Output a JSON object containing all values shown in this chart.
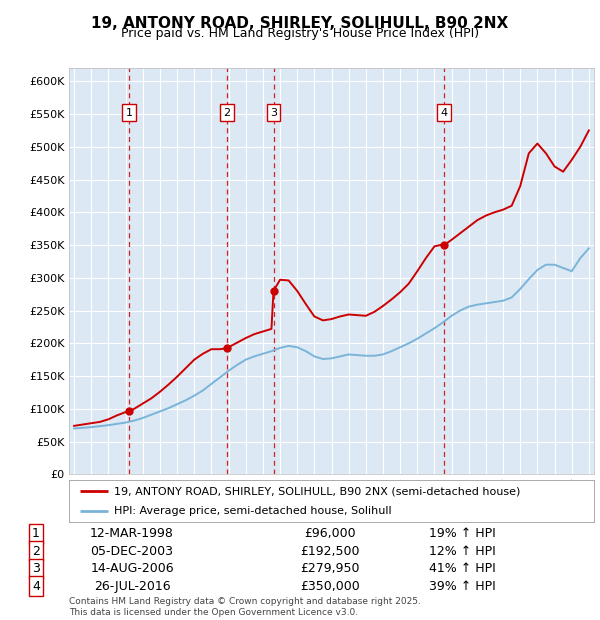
{
  "title": "19, ANTONY ROAD, SHIRLEY, SOLIHULL, B90 2NX",
  "subtitle": "Price paid vs. HM Land Registry's House Price Index (HPI)",
  "plot_bg_color": "#dce9f5",
  "hpi_color": "#7ab4d8",
  "price_color": "#cc0000",
  "ylim": [
    0,
    620000
  ],
  "yticks": [
    0,
    50000,
    100000,
    150000,
    200000,
    250000,
    300000,
    350000,
    400000,
    450000,
    500000,
    550000,
    600000
  ],
  "xlim_start": 1994.7,
  "xlim_end": 2025.3,
  "sale_dates": [
    1998.19,
    2003.92,
    2006.62,
    2016.57
  ],
  "sale_prices": [
    96000,
    192500,
    279950,
    350000
  ],
  "sale_labels": [
    "1",
    "2",
    "3",
    "4"
  ],
  "sale_hpi_pct": [
    "19% ↑ HPI",
    "12% ↑ HPI",
    "41% ↑ HPI",
    "39% ↑ HPI"
  ],
  "sale_date_strs": [
    "12-MAR-1998",
    "05-DEC-2003",
    "14-AUG-2006",
    "26-JUL-2016"
  ],
  "sale_price_strs": [
    "£96,000",
    "£192,500",
    "£279,950",
    "£350,000"
  ],
  "legend_line1": "19, ANTONY ROAD, SHIRLEY, SOLIHULL, B90 2NX (semi-detached house)",
  "legend_line2": "HPI: Average price, semi-detached house, Solihull",
  "footer": "Contains HM Land Registry data © Crown copyright and database right 2025.\nThis data is licensed under the Open Government Licence v3.0.",
  "hpi_x": [
    1995.0,
    1995.5,
    1996.0,
    1996.5,
    1997.0,
    1997.5,
    1998.0,
    1998.5,
    1999.0,
    1999.5,
    2000.0,
    2000.5,
    2001.0,
    2001.5,
    2002.0,
    2002.5,
    2003.0,
    2003.5,
    2004.0,
    2004.5,
    2005.0,
    2005.5,
    2006.0,
    2006.5,
    2007.0,
    2007.5,
    2008.0,
    2008.5,
    2009.0,
    2009.5,
    2010.0,
    2010.5,
    2011.0,
    2011.5,
    2012.0,
    2012.5,
    2013.0,
    2013.5,
    2014.0,
    2014.5,
    2015.0,
    2015.5,
    2016.0,
    2016.5,
    2017.0,
    2017.5,
    2018.0,
    2018.5,
    2019.0,
    2019.5,
    2020.0,
    2020.5,
    2021.0,
    2021.5,
    2022.0,
    2022.5,
    2023.0,
    2023.5,
    2024.0,
    2024.5,
    2025.0
  ],
  "hpi_y": [
    70000,
    71000,
    72000,
    73500,
    75000,
    77000,
    79000,
    82000,
    86000,
    91000,
    96000,
    101000,
    107000,
    113000,
    120000,
    128000,
    138000,
    148000,
    158000,
    167000,
    175000,
    180000,
    184000,
    188000,
    193000,
    196000,
    194000,
    188000,
    180000,
    176000,
    177000,
    180000,
    183000,
    182000,
    181000,
    181000,
    183000,
    188000,
    194000,
    200000,
    207000,
    215000,
    223000,
    232000,
    242000,
    250000,
    256000,
    259000,
    261000,
    263000,
    265000,
    270000,
    283000,
    298000,
    312000,
    320000,
    320000,
    315000,
    310000,
    330000,
    345000
  ],
  "price_x": [
    1995.0,
    1995.5,
    1996.0,
    1996.5,
    1997.0,
    1997.5,
    1998.0,
    1998.19,
    1998.5,
    1999.0,
    1999.5,
    2000.0,
    2000.5,
    2001.0,
    2001.5,
    2002.0,
    2002.5,
    2003.0,
    2003.5,
    2003.92,
    2004.0,
    2004.5,
    2005.0,
    2005.5,
    2006.0,
    2006.5,
    2006.62,
    2007.0,
    2007.5,
    2008.0,
    2008.5,
    2009.0,
    2009.5,
    2010.0,
    2010.5,
    2011.0,
    2011.5,
    2012.0,
    2012.5,
    2013.0,
    2013.5,
    2014.0,
    2014.5,
    2015.0,
    2015.5,
    2016.0,
    2016.5,
    2016.57,
    2017.0,
    2017.5,
    2018.0,
    2018.5,
    2019.0,
    2019.5,
    2020.0,
    2020.5,
    2021.0,
    2021.5,
    2022.0,
    2022.5,
    2023.0,
    2023.5,
    2024.0,
    2024.5,
    2025.0
  ],
  "price_y": [
    74000,
    76000,
    78000,
    80000,
    84000,
    90000,
    95000,
    96000,
    100000,
    108000,
    116000,
    126000,
    137000,
    149000,
    162000,
    175000,
    184000,
    191000,
    191000,
    192500,
    194000,
    201000,
    208000,
    214000,
    218000,
    222000,
    279950,
    297000,
    296000,
    280000,
    260000,
    241000,
    235000,
    237000,
    241000,
    244000,
    243000,
    242000,
    248000,
    257000,
    267000,
    278000,
    291000,
    310000,
    330000,
    348000,
    351000,
    350000,
    358000,
    368000,
    378000,
    388000,
    395000,
    400000,
    404000,
    410000,
    440000,
    490000,
    505000,
    490000,
    470000,
    462000,
    480000,
    500000,
    525000
  ]
}
